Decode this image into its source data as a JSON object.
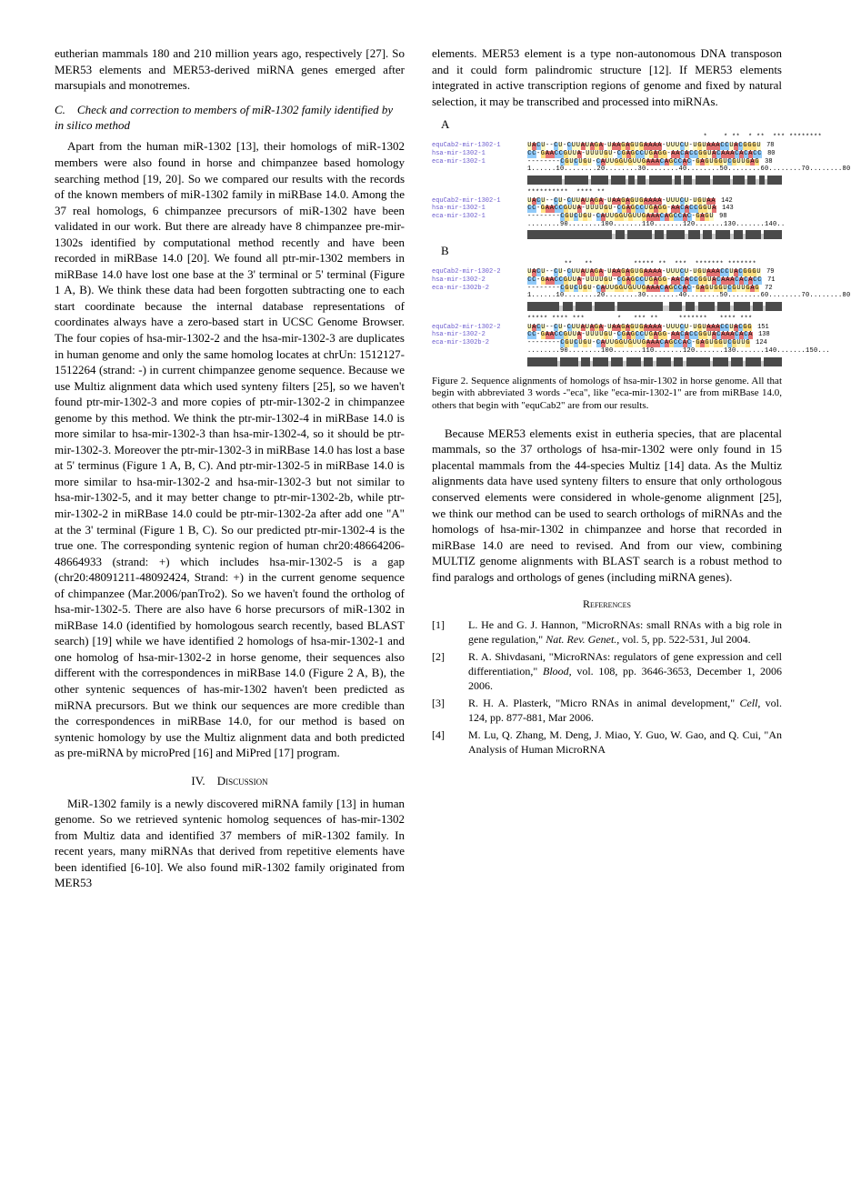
{
  "col1": {
    "p1": "eutherian mammals 180 and 210 million years ago, respectively [27]. So MER53 elements and MER53-derived miRNA genes emerged after marsupials and monotremes.",
    "sectionC_label": "C.",
    "sectionC_title": "Check and correction to members of miR-1302 family identified by in silico method",
    "p2": "Apart from the human miR-1302 [13], their homologs of miR-1302 members were also found in horse and chimpanzee based homology searching method [19, 20]. So we compared our results with the records of the known members of miR-1302 family in miRBase 14.0. Among the 37 real homologs, 6 chimpanzee precursors of miR-1302 have been validated in our work. But there are already have 8 chimpanzee pre-mir-1302s identified by computational method recently and have been recorded in miRBase 14.0 [20]. We found all ptr-mir-1302 members in miRBase 14.0 have lost one base at the 3' terminal or 5' terminal (Figure 1 A, B). We think these data had been forgotten subtracting one to each start coordinate because the internal database representations of coordinates always have a zero-based start in UCSC Genome Browser. The four copies of hsa-mir-1302-2 and the hsa-mir-1302-3 are duplicates in human genome and only the same homolog locates at chrUn: 1512127-1512264 (strand: -) in current chimpanzee genome sequence. Because we use Multiz alignment data which used synteny filters [25], so we haven't found ptr-mir-1302-3 and more copies of ptr-mir-1302-2 in chimpanzee genome by this method. We think the ptr-mir-1302-4 in miRBase 14.0 is more similar to hsa-mir-1302-3 than hsa-mir-1302-4, so it should be ptr-mir-1302-3. Moreover the ptr-mir-1302-3 in miRBase 14.0 has lost a base at 5' terminus (Figure 1 A, B, C). And ptr-mir-1302-5 in miRBase 14.0 is more similar to hsa-mir-1302-2 and hsa-mir-1302-3 but not similar to hsa-mir-1302-5, and it may better change to ptr-mir-1302-2b, while ptr-mir-1302-2 in miRBase 14.0 could be ptr-mir-1302-2a after add one \"A\" at the 3' terminal (Figure 1 B, C). So our predicted ptr-mir-1302-4 is the true one. The corresponding syntenic region of human chr20:48664206-48664933 (strand: +) which includes hsa-mir-1302-5 is a gap (chr20:48091211-48092424, Strand: +) in the current genome sequence of chimpanzee (Mar.2006/panTro2). So we haven't found the ortholog of hsa-mir-1302-5. There are also have 6 horse precursors of miR-1302 in miRBase 14.0 (identified by homologous search recently, based BLAST search) [19] while we have identified 2 homologs of hsa-mir-1302-1 and one homolog of hsa-mir-1302-2 in horse genome, their sequences also different with the correspondences in miRBase 14.0 (Figure 2 A, B), the other syntenic sequences of has-mir-1302 haven't been predicted as miRNA precursors. But we think our sequences are more credible than the correspondences in miRBase 14.0, for our method is based on syntenic homology by use the Multiz alignment data and both predicted as pre-miRNA by microPred [16] and MiPred [17] program.",
    "sectionIV_roman": "IV.",
    "sectionIV_name": "Discussion",
    "p3": "MiR-1302 family is a newly discovered miRNA family [13] in human genome. So we retrieved syntenic homolog sequences of has-mir-1302 from Multiz data and identified 37 members of miR-1302 family. In recent years, many miRNAs that derived from repetitive elements have been identified [6-10]. We also found miR-1302 family originated from MER53"
  },
  "col2": {
    "p1": "elements. MER53 element is a type non-autonomous DNA transposon and it could form palindromic structure [12]. If MER53 elements integrated in active transcription regions of genome and fixed by natural selection, it may be transcribed and processed into miRNAs.",
    "figA_label": "A",
    "figB_label": "B",
    "caption": "Figure 2. Sequence alignments of homologs of hsa-mir-1302 in horse genome. All that begin with abbreviated 3 words -\"eca\", like \"eca-mir-1302-1\" are from miRBase 14.0, others that begin with \"equCab2\" are from our results.",
    "p2": "Because MER53 elements exist in eutheria species, that are placental mammals, so the 37 orthologs of hsa-mir-1302 were only found in 15 placental mammals from the 44-species Multiz [14] data. As the Multiz alignments data have used synteny filters to ensure that only orthologous conserved elements were considered in whole-genome alignment [25], we think our method can be used to search orthologs of miRNAs and the homologs of hsa-mir-1302 in chimpanzee and horse that recorded in miRBase 14.0 are need to revised. And from our view, combining MULTIZ genome alignments with BLAST search is a robust method to find paralogs and orthologs of genes (including miRNA genes).",
    "references_title": "References",
    "refs": [
      {
        "num": "[1]",
        "text": "L. He and G. J. Hannon, \"MicroRNAs: small RNAs with a big role in gene regulation,\" ",
        "ital": "Nat. Rev. Genet.,",
        "tail": " vol. 5, pp. 522-531, Jul 2004."
      },
      {
        "num": "[2]",
        "text": "R. A. Shivdasani, \"MicroRNAs: regulators of gene expression and cell differentiation,\" ",
        "ital": "Blood,",
        "tail": " vol. 108, pp. 3646-3653, December 1, 2006 2006."
      },
      {
        "num": "[3]",
        "text": "R. H. A. Plasterk, \"Micro RNAs in animal development,\" ",
        "ital": "Cell,",
        "tail": " vol. 124, pp. 877-881, Mar 2006."
      },
      {
        "num": "[4]",
        "text": "M. Lu, Q. Zhang, M. Deng, J. Miao, Y. Guo, W. Gao, and Q. Cui, \"An Analysis of Human MicroRNA",
        "ital": "",
        "tail": ""
      }
    ],
    "seq_names_A1": [
      "equCab2-mir-1302-1",
      "hsa-mir-1302-1",
      "eca-mir-1302-1"
    ],
    "seq_nums_A1": [
      "78",
      "80",
      "38"
    ],
    "seq_names_A2": [
      "equCab2-mir-1302-1",
      "hsa-mir-1302-1",
      "eca-mir-1302-1"
    ],
    "seq_nums_A2": [
      "142",
      "143",
      "98"
    ],
    "seq_names_B1": [
      "equCab2-mir-1302-2",
      "hsa-mir-1302-2",
      "eca-mir-1302b-2"
    ],
    "seq_nums_B1": [
      "79",
      "71",
      "72"
    ],
    "seq_names_B2": [
      "equCab2-mir-1302-2",
      "hsa-mir-1302-2",
      "eca-mir-1302b-2"
    ],
    "seq_nums_B2": [
      "151",
      "138",
      "124"
    ],
    "ruler1": "1......10........20........30........40........50........60........70........80",
    "ruler2": "........90........100.......110.......120.......130.......140..",
    "rulerB2": "........90........100.......110.......120.......130.......140.......150...",
    "barsA1": [
      12,
      1,
      8,
      1,
      6,
      1,
      5,
      1,
      2,
      1,
      3,
      1,
      8,
      1,
      2,
      1,
      3,
      1,
      5,
      1,
      6,
      1,
      4,
      1,
      3,
      1,
      2,
      1,
      5
    ],
    "barsA2": [
      28,
      1,
      3,
      1,
      8,
      1,
      3,
      1,
      6,
      1,
      4,
      1,
      3,
      1,
      5,
      1,
      3,
      1,
      5,
      1,
      6
    ],
    "barsB1": [
      10,
      1,
      3,
      1,
      5,
      1,
      6,
      1,
      14,
      2,
      4,
      1,
      3,
      1,
      5,
      1,
      4,
      1,
      5,
      1,
      3,
      1,
      5
    ],
    "barsB2": [
      10,
      1,
      6,
      1,
      3,
      1,
      5,
      1,
      4,
      1,
      5,
      1,
      3,
      1,
      5,
      1,
      3,
      1,
      8,
      1,
      5,
      1,
      4,
      1,
      5,
      1,
      6
    ],
    "bar_dark": "#4a4a4a",
    "bar_light": "#cccccc"
  }
}
